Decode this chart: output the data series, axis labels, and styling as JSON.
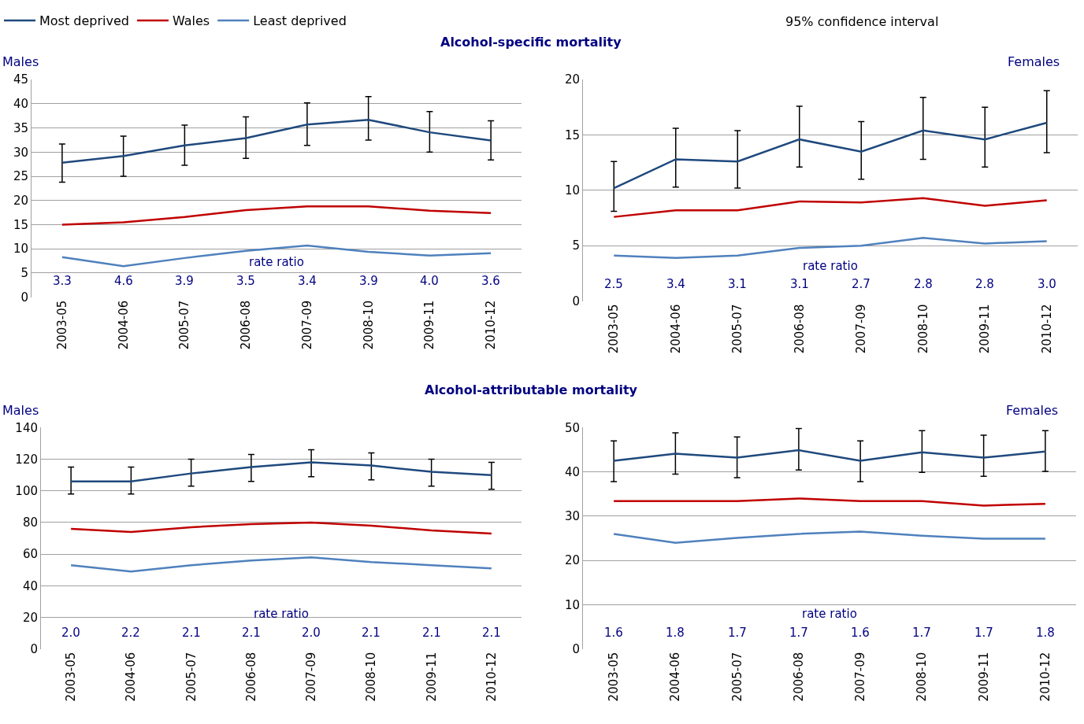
{
  "chart_data": [
    {
      "type": "line",
      "title": "Alcohol-specific mortality",
      "ylabel": "Males",
      "legend": "top",
      "categories": [
        "2003-05",
        "2004-06",
        "2005-07",
        "2006-08",
        "2007-09",
        "2008-10",
        "2009-11",
        "2010-12"
      ],
      "ylim": [
        0,
        45
      ],
      "yticks": [
        0,
        5,
        10,
        15,
        20,
        25,
        30,
        35,
        40,
        45
      ],
      "grid": "y",
      "marker": "none",
      "line_style": "solid",
      "series": [
        {
          "name": "Most deprived",
          "color": "#1f497d",
          "values": [
            27.8,
            29.2,
            31.4,
            32.9,
            35.7,
            36.7,
            34.1,
            32.4
          ],
          "errors": [
            [
              23.8,
              31.7
            ],
            [
              25.0,
              33.3
            ],
            [
              27.3,
              35.6
            ],
            [
              28.7,
              37.3
            ],
            [
              31.4,
              40.2
            ],
            [
              32.5,
              41.5
            ],
            [
              30.0,
              38.4
            ],
            [
              28.4,
              36.5
            ]
          ]
        },
        {
          "name": "Wales",
          "color": "#c00000",
          "values": [
            15.0,
            15.5,
            16.6,
            18.0,
            18.8,
            18.8,
            17.9,
            17.4
          ]
        },
        {
          "name": "Least deprived",
          "color": "#4f81bd",
          "values": [
            8.3,
            6.4,
            8.1,
            9.6,
            10.7,
            9.4,
            8.6,
            9.1
          ]
        }
      ],
      "annotations": [
        "95% confidence interval",
        "rate ratio",
        "3.3",
        "4.6",
        "3.9",
        "3.5",
        "3.4",
        "3.9",
        "4.0",
        "3.6"
      ]
    },
    {
      "type": "line",
      "ylabel": "Females",
      "categories": [
        "2003-05",
        "2004-06",
        "2005-07",
        "2006-08",
        "2007-09",
        "2008-10",
        "2009-11",
        "2010-12"
      ],
      "ylim": [
        0,
        20
      ],
      "yticks": [
        0,
        5,
        10,
        15,
        20
      ],
      "grid": "y",
      "marker": "none",
      "line_style": "solid",
      "series": [
        {
          "color": "#1f497d",
          "values": [
            10.2,
            12.8,
            12.6,
            14.6,
            13.5,
            15.4,
            14.6,
            16.1
          ],
          "errors": [
            [
              8.1,
              12.6
            ],
            [
              10.3,
              15.6
            ],
            [
              10.2,
              15.4
            ],
            [
              12.1,
              17.6
            ],
            [
              11.0,
              16.2
            ],
            [
              12.8,
              18.4
            ],
            [
              12.1,
              17.5
            ],
            [
              13.4,
              19.0
            ]
          ]
        },
        {
          "color": "#c00000",
          "values": [
            7.6,
            8.2,
            8.2,
            9.0,
            8.9,
            9.3,
            8.6,
            9.1
          ]
        },
        {
          "color": "#4f81bd",
          "values": [
            4.1,
            3.9,
            4.1,
            4.8,
            5.0,
            5.7,
            5.2,
            5.4
          ]
        }
      ],
      "annotations": [
        "rate ratio",
        "2.5",
        "3.4",
        "3.1",
        "3.1",
        "2.7",
        "2.8",
        "2.8",
        "3.0"
      ]
    },
    {
      "type": "line",
      "title": "Alcohol-attributable mortality",
      "ylabel": "Males",
      "categories": [
        "2003-05",
        "2004-06",
        "2005-07",
        "2006-08",
        "2007-09",
        "2008-10",
        "2009-11",
        "2010-12"
      ],
      "ylim": [
        0,
        140
      ],
      "yticks": [
        0,
        20,
        40,
        60,
        80,
        100,
        120,
        140
      ],
      "grid": "y",
      "marker": "none",
      "line_style": "solid",
      "series": [
        {
          "color": "#1f497d",
          "values": [
            106,
            106,
            111,
            115,
            118,
            116,
            112,
            110
          ],
          "errors": [
            [
              98,
              115
            ],
            [
              98,
              115
            ],
            [
              103,
              120
            ],
            [
              106,
              123
            ],
            [
              109,
              126
            ],
            [
              107,
              124
            ],
            [
              103,
              120
            ],
            [
              101,
              118
            ]
          ]
        },
        {
          "color": "#c00000",
          "values": [
            76,
            74,
            77,
            79,
            80,
            78,
            75,
            73
          ]
        },
        {
          "color": "#4f81bd",
          "values": [
            53,
            49,
            53,
            56,
            58,
            55,
            53,
            51
          ]
        }
      ],
      "annotations": [
        "rate ratio",
        "2.0",
        "2.2",
        "2.1",
        "2.1",
        "2.0",
        "2.1",
        "2.1",
        "2.1"
      ]
    },
    {
      "type": "line",
      "ylabel": "Females",
      "categories": [
        "2003-05",
        "2004-06",
        "2005-07",
        "2006-08",
        "2007-09",
        "2008-10",
        "2009-11",
        "2010-12"
      ],
      "ylim": [
        0,
        50
      ],
      "yticks": [
        0,
        10,
        20,
        30,
        40,
        50
      ],
      "grid": "y",
      "marker": "none",
      "line_style": "solid",
      "series": [
        {
          "color": "#1f497d",
          "values": [
            42.5,
            44.1,
            43.2,
            44.9,
            42.5,
            44.4,
            43.2,
            44.6
          ],
          "errors": [
            [
              37.8,
              47.0
            ],
            [
              39.5,
              48.8
            ],
            [
              38.7,
              47.9
            ],
            [
              40.4,
              49.8
            ],
            [
              37.8,
              47.0
            ],
            [
              39.9,
              49.3
            ],
            [
              39.0,
              48.3
            ],
            [
              40.1,
              49.3
            ]
          ]
        },
        {
          "color": "#c00000",
          "values": [
            33.4,
            33.4,
            33.4,
            34.0,
            33.4,
            33.4,
            32.4,
            32.8
          ]
        },
        {
          "color": "#4f81bd",
          "values": [
            26.0,
            24.0,
            25.1,
            26.0,
            26.5,
            25.6,
            24.9,
            24.9
          ]
        }
      ],
      "annotations": [
        "rate ratio",
        "1.6",
        "1.8",
        "1.7",
        "1.7",
        "1.6",
        "1.7",
        "1.7",
        "1.8"
      ]
    }
  ]
}
